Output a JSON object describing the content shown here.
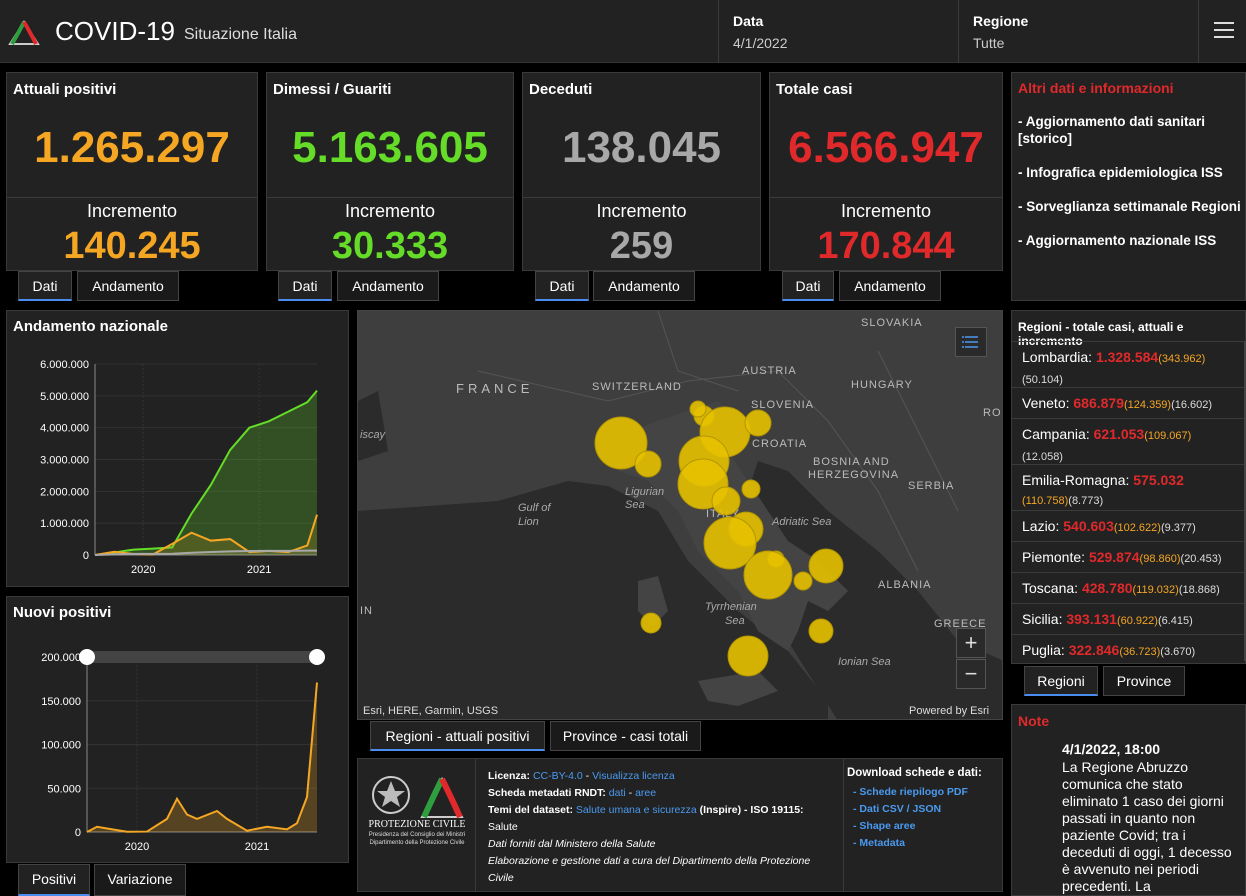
{
  "header": {
    "title": "COVID-19",
    "subtitle": "Situazione Italia",
    "data_label": "Data",
    "data_value": "4/1/2022",
    "regione_label": "Regione",
    "regione_value": "Tutte"
  },
  "cards": [
    {
      "title": "Attuali positivi",
      "value": "1.265.297",
      "inc_label": "Incremento",
      "inc_value": "140.245",
      "color": "#f5a623",
      "tab1": "Dati",
      "tab2": "Andamento"
    },
    {
      "title": "Dimessi / Guariti",
      "value": "5.163.605",
      "inc_label": "Incremento",
      "inc_value": "30.333",
      "color": "#64dc28",
      "tab1": "Dati",
      "tab2": "Andamento"
    },
    {
      "title": "Deceduti",
      "value": "138.045",
      "inc_label": "Incremento",
      "inc_value": "259",
      "color": "#a8a8a8",
      "tab1": "Dati",
      "tab2": "Andamento"
    },
    {
      "title": "Totale casi",
      "value": "6.566.947",
      "inc_label": "Incremento",
      "inc_value": "170.844",
      "color": "#e0292b",
      "tab1": "Dati",
      "tab2": "Andamento"
    }
  ],
  "info": {
    "title": "Altri dati e informazioni",
    "links": [
      "- Aggiornamento dati sanitari [storico]",
      "- Infografica epidemiologica ISS",
      "- Sorveglianza settimanale Regioni",
      "- Aggiornamento nazionale ISS"
    ]
  },
  "chart_data": [
    {
      "type": "area",
      "title": "Andamento nazionale",
      "x_tick_labels": [
        "2020",
        "2021"
      ],
      "y_tick_labels": [
        "0",
        "1.000.000",
        "2.000.000",
        "3.000.000",
        "4.000.000",
        "5.000.000",
        "6.000.000"
      ],
      "ylim": [
        0,
        6000000
      ],
      "x": [
        "2020-02",
        "2020-04",
        "2020-06",
        "2020-08",
        "2020-10",
        "2020-12",
        "2021-02",
        "2021-04",
        "2021-06",
        "2021-08",
        "2021-10",
        "2021-12",
        "2022-01"
      ],
      "series": [
        {
          "color": "#64dc28",
          "values": [
            0,
            80000,
            170000,
            200000,
            240000,
            1300000,
            2200000,
            3300000,
            4000000,
            4200000,
            4500000,
            4800000,
            5163605
          ]
        },
        {
          "color": "#f5a623",
          "values": [
            0,
            100000,
            30000,
            15000,
            350000,
            700000,
            450000,
            500000,
            90000,
            130000,
            90000,
            300000,
            1265297
          ]
        },
        {
          "color": "#a8a8a8",
          "values": [
            0,
            20000,
            34000,
            35000,
            40000,
            70000,
            95000,
            115000,
            127000,
            128000,
            131000,
            136000,
            138045
          ]
        }
      ]
    },
    {
      "type": "area",
      "title": "Nuovi positivi",
      "x_tick_labels": [
        "2020",
        "2021"
      ],
      "y_tick_labels": [
        "0",
        "50.000",
        "100.000",
        "150.000",
        "200.000"
      ],
      "ylim": [
        0,
        200000
      ],
      "x": [
        "2020-02",
        "2020-03",
        "2020-04",
        "2020-06",
        "2020-08",
        "2020-10",
        "2020-11",
        "2020-12",
        "2021-01",
        "2021-03",
        "2021-04",
        "2021-06",
        "2021-08",
        "2021-10",
        "2021-11",
        "2021-12",
        "2022-01"
      ],
      "series": [
        {
          "color": "#f5a623",
          "values": [
            0,
            6000,
            4000,
            300,
            500,
            15000,
            38000,
            20000,
            15000,
            24000,
            15000,
            1500,
            6000,
            3000,
            10000,
            40000,
            170844
          ]
        }
      ]
    }
  ],
  "tabs_chart1": [
    "Positivi",
    "Variazione"
  ],
  "map": {
    "countries": [
      "FRANCE",
      "SWITZERLAND",
      "AUSTRIA",
      "SLOVENIA",
      "CROATIA",
      "HUNGARY",
      "SLOVAKIA",
      "BOSNIA AND",
      "HERZEGOVINA",
      "SERBIA",
      "ALBANIA",
      "GREECE",
      "ITALY",
      "RO",
      "IN"
    ],
    "seas": [
      "Ligurian",
      "Sea",
      "Gulf of",
      "Lion",
      "Adriatic Sea",
      "Tyrrhenian",
      "Sea",
      "Ionian Sea",
      "iscay"
    ],
    "attribution": "Esri, HERE, Garmin, USGS",
    "powered": "Powered by Esri",
    "tab1": "Regioni - attuali positivi",
    "tab2": "Province - casi totali"
  },
  "regions": {
    "title": "Regioni - totale casi, attuali e incremento",
    "items": [
      {
        "name": "Lombardia:",
        "tot": "1.328.584",
        "att": "(343.962)",
        "inc": "(50.104)"
      },
      {
        "name": "Veneto:",
        "tot": "686.879",
        "att": "(124.359)",
        "inc": "(16.602)"
      },
      {
        "name": "Campania:",
        "tot": "621.053",
        "att": "(109.067)",
        "inc": "(12.058)"
      },
      {
        "name": "Emilia-Romagna:",
        "tot": "575.032",
        "att": "(110.758)",
        "inc": "(8.773)"
      },
      {
        "name": "Lazio:",
        "tot": "540.603",
        "att": "(102.622)",
        "inc": "(9.377)"
      },
      {
        "name": "Piemonte:",
        "tot": "529.874",
        "att": "(98.860)",
        "inc": "(20.453)"
      },
      {
        "name": "Toscana:",
        "tot": "428.780",
        "att": "(119.032)",
        "inc": "(18.868)"
      },
      {
        "name": "Sicilia:",
        "tot": "393.131",
        "att": "(60.922)",
        "inc": "(6.415)"
      },
      {
        "name": "Puglia:",
        "tot": "322.846",
        "att": "(36.723)",
        "inc": "(3.670)"
      }
    ],
    "tab1": "Regioni",
    "tab2": "Province"
  },
  "license": {
    "logo_text_1": "PROTEZIONE CIVILE",
    "logo_text_2": "Presidenza del Consiglio dei Ministri",
    "logo_text_3": "Dipartimento della Protezione Civile",
    "lic_label": "Licenza:",
    "lic_link": "CC-BY-4.0",
    "lic_sep": " - ",
    "lic_view": "Visualizza licenza",
    "meta_label": "Scheda metadati RNDT:",
    "meta_link1": "dati",
    "meta_link2": "aree",
    "temi_label": "Temi del dataset:",
    "temi_link": "Salute umana e sicurezza",
    "temi_rest": "(Inspire) - ISO 19115:",
    "salute": "Salute",
    "fonte": "Dati forniti dal Ministero della Salute",
    "elab": "Elaborazione e gestione dati a cura del Dipartimento della Protezione Civile",
    "download_title": "Download schede e dati:",
    "downloads": [
      "- Schede riepilogo PDF",
      "- Dati CSV / JSON",
      "- Shape aree",
      "- Metadata"
    ]
  },
  "note": {
    "title": "Note",
    "date": "4/1/2022, 18:00",
    "text": "La Regione Abruzzo comunica che stato eliminato 1 caso dei giorni passati in quanto non paziente Covid; tra i deceduti di oggi, 1 decesso è avvenuto nei periodi precedenti. La"
  }
}
